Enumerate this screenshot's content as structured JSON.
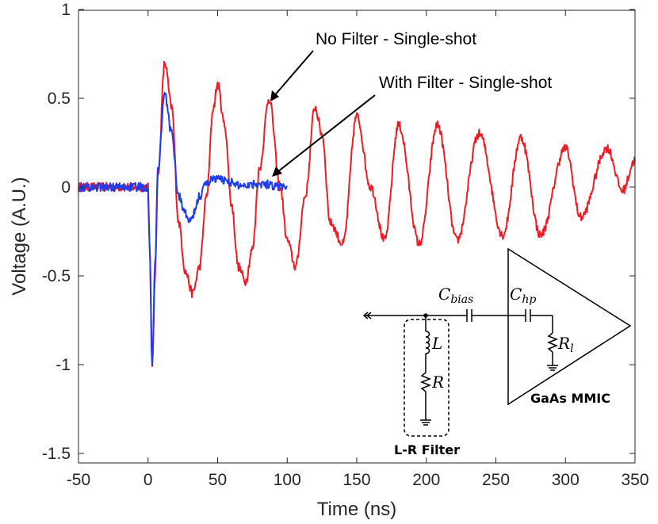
{
  "chart_data": {
    "type": "line",
    "title": "",
    "xlabel": "Time (ns)",
    "ylabel": "Voltage (A.U.)",
    "xlim": [
      -50,
      350
    ],
    "ylim": [
      -1.55,
      1
    ],
    "xticks": [
      -50,
      0,
      50,
      100,
      150,
      200,
      250,
      300,
      350
    ],
    "yticks": [
      -1.5,
      -1,
      -0.5,
      0,
      0.5,
      1
    ],
    "xtick_labels": [
      "-50",
      "0",
      "50",
      "100",
      "150",
      "200",
      "250",
      "300",
      "350"
    ],
    "ytick_labels": [
      "-1.5",
      "-1",
      "-0.5",
      "0",
      "0.5",
      "1"
    ],
    "grid": false,
    "series": [
      {
        "name": "No Filter - Single-shot",
        "color": "#ee1c25",
        "x": [
          -50,
          0,
          1,
          3,
          5,
          7,
          12,
          17,
          22,
          27,
          32,
          37,
          42,
          47,
          50,
          55,
          60,
          65,
          70,
          75,
          80,
          87,
          95,
          100,
          106,
          113,
          120,
          125,
          131,
          140,
          150,
          160,
          170,
          180,
          195,
          208,
          222,
          238,
          255,
          268,
          282,
          300,
          311,
          330,
          341,
          350
        ],
        "y": [
          0.0,
          0.0,
          -0.3,
          -1.0,
          -0.5,
          0.05,
          0.7,
          0.45,
          -0.2,
          -0.48,
          -0.6,
          -0.45,
          -0.05,
          0.45,
          0.58,
          0.35,
          -0.1,
          -0.45,
          -0.53,
          -0.35,
          0.1,
          0.5,
          0.0,
          -0.3,
          -0.45,
          -0.05,
          0.45,
          0.3,
          -0.2,
          -0.32,
          0.4,
          0.0,
          -0.3,
          0.35,
          -0.32,
          0.35,
          -0.3,
          0.3,
          -0.27,
          0.28,
          -0.27,
          0.22,
          -0.17,
          0.22,
          -0.02,
          0.15
        ]
      },
      {
        "name": "With Filter - Single-shot",
        "color": "#1f3ded",
        "x": [
          -50,
          0,
          1,
          3,
          5,
          7,
          12,
          17,
          22,
          27,
          30,
          33,
          37,
          42,
          47,
          55,
          65,
          80,
          100
        ],
        "y": [
          0.0,
          0.0,
          -0.3,
          -1.0,
          -0.45,
          0.1,
          0.52,
          0.3,
          -0.05,
          -0.15,
          -0.2,
          -0.15,
          -0.05,
          0.02,
          0.05,
          0.04,
          0.01,
          0.02,
          0.0
        ]
      }
    ],
    "annotations": [
      {
        "text": "No Filter - Single-shot",
        "points_to": [
          87,
          0.5
        ]
      },
      {
        "text": "With Filter - Single-shot",
        "points_to": [
          87,
          0.02
        ]
      }
    ],
    "inset": {
      "labels": {
        "c_bias_main": "C",
        "c_bias_sub": "bias",
        "c_hp_main": "C",
        "c_hp_sub": "hp",
        "r_l_main": "R",
        "r_l_sub": "l",
        "l": "L",
        "r": "R",
        "amp": "GaAs MMIC",
        "filter": "L-R Filter"
      }
    }
  }
}
